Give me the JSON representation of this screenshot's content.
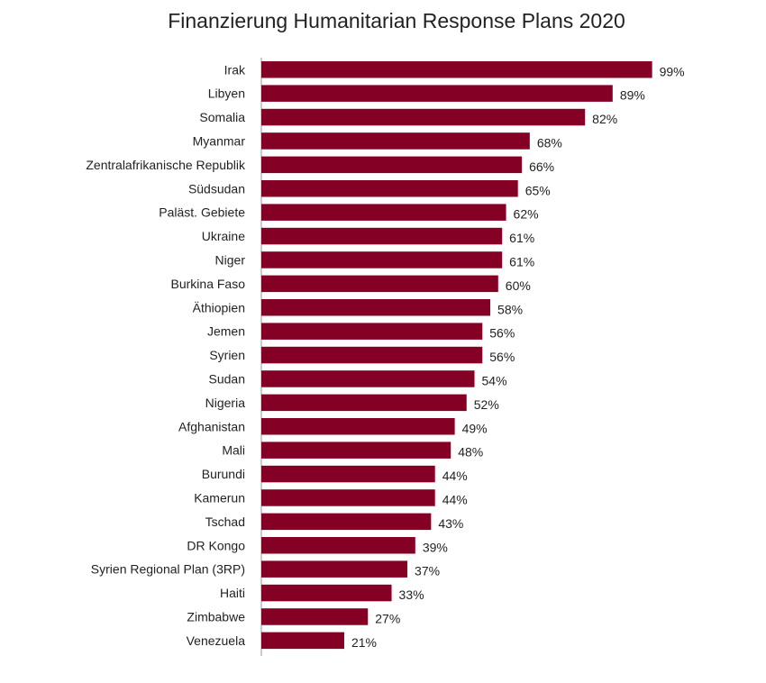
{
  "chart_data": {
    "type": "bar",
    "orientation": "horizontal",
    "title": "Finanzierung Humanitarian Response Plans 2020",
    "xlabel": "",
    "ylabel": "",
    "xlim": [
      0,
      100
    ],
    "value_suffix": "%",
    "grid": false,
    "bar_color": "#850025",
    "categories": [
      "Irak",
      "Libyen",
      "Somalia",
      "Myanmar",
      "Zentralafrikanische Republik",
      "Südsudan",
      "Paläst. Gebiete",
      "Ukraine",
      "Niger",
      "Burkina Faso",
      "Äthiopien",
      "Jemen",
      "Syrien",
      "Sudan",
      "Nigeria",
      "Afghanistan",
      "Mali",
      "Burundi",
      "Kamerun",
      "Tschad",
      "DR Kongo",
      "Syrien Regional Plan (3RP)",
      "Haiti",
      "Zimbabwe",
      "Venezuela"
    ],
    "values": [
      99,
      89,
      82,
      68,
      66,
      65,
      62,
      61,
      61,
      60,
      58,
      56,
      56,
      54,
      52,
      49,
      48,
      44,
      44,
      43,
      39,
      37,
      33,
      27,
      21
    ]
  }
}
